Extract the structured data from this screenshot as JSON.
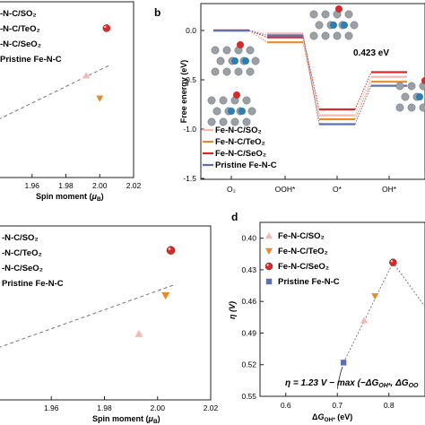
{
  "figure": {
    "panel_b_letter": "b",
    "panel_d_letter": "d",
    "annotation_b": "0.423 eV",
    "equation_d": "η = 1.23 V − max (−ΔG",
    "equation_d_sub": "OH*",
    "equation_d_tail": ", ΔG",
    "equation_d_sub2": "OO",
    "series_labels": {
      "so2": "Fe-N-C/SO₂",
      "teo2": "Fe-N-C/TeO₂",
      "seo2": "Fe-N-C/SeO₂",
      "pristine": "Pristine Fe-N-C"
    },
    "legend_a_labels": [
      "-N-C/SO₂",
      "-N-C/TeO₂",
      "-N-C/SeO₂",
      "Pristine Fe-N-C"
    ],
    "legend_c_labels": [
      "-N-C/SO₂",
      "-N-C/TeO₂",
      "-N-C/SeO₂",
      "Pristine Fe-N-C"
    ],
    "colors": {
      "so2": "#f4b8b0",
      "teo2": "#e88a2a",
      "seo2": "#d62a2a",
      "pristine": "#5b6fb5",
      "dash": "#777777"
    }
  },
  "chart_data": [
    {
      "panel": "a",
      "type": "scatter",
      "xlabel": "Spin moment (μB)",
      "xlim": [
        1.94,
        2.02
      ],
      "xticks": [
        1.96,
        1.98,
        2.0,
        2.02
      ],
      "xtick_labels": [
        "1.96",
        "1.98",
        "2.00",
        "2.02"
      ],
      "points": [
        {
          "series": "so2",
          "x": 1.992,
          "y": 0.58
        },
        {
          "series": "teo2",
          "x": 2.0,
          "y": 0.45
        },
        {
          "series": "seo2",
          "x": 2.004,
          "y": 0.85
        }
      ],
      "fit_line": [
        [
          1.94,
          0.33
        ],
        [
          2.006,
          0.64
        ]
      ]
    },
    {
      "panel": "b",
      "type": "line",
      "ylabel": "Free energy (eV)",
      "categories": [
        "O₂",
        "OOH*",
        "O*",
        "OH*"
      ],
      "ylim": [
        -1.5,
        0.25
      ],
      "yticks": [
        0.0,
        -0.5,
        -1.0,
        -1.5
      ],
      "ytick_labels": [
        "0.0",
        "-0.5",
        "-1.0",
        "-1.5"
      ],
      "series": [
        {
          "name": "so2",
          "values": [
            0.0,
            -0.03,
            -0.86,
            -0.47
          ]
        },
        {
          "name": "teo2",
          "values": [
            0.0,
            -0.12,
            -0.9,
            -0.52
          ]
        },
        {
          "name": "seo2",
          "values": [
            0.0,
            -0.07,
            -0.8,
            -0.423
          ]
        },
        {
          "name": "pristine",
          "values": [
            0.0,
            -0.05,
            -0.95,
            -0.56
          ]
        }
      ]
    },
    {
      "panel": "c",
      "type": "scatter",
      "xlabel": "Spin moment (μB)",
      "xlim": [
        1.94,
        2.02
      ],
      "xticks": [
        1.96,
        1.98,
        2.0,
        2.02
      ],
      "xtick_labels": [
        "1.96",
        "1.98",
        "2.00",
        "2.02"
      ],
      "points": [
        {
          "series": "so2",
          "x": 1.993,
          "y": 0.38
        },
        {
          "series": "teo2",
          "x": 2.003,
          "y": 0.6
        },
        {
          "series": "seo2",
          "x": 2.005,
          "y": 0.86
        }
      ],
      "fit_line": [
        [
          1.94,
          0.3
        ],
        [
          2.006,
          0.66
        ]
      ]
    },
    {
      "panel": "d",
      "type": "scatter",
      "xlabel": "ΔGOH* (eV)",
      "ylabel": "η (V)",
      "xlim": [
        0.55,
        0.87
      ],
      "ylim": [
        0.55,
        0.385
      ],
      "xticks": [
        0.6,
        0.7,
        0.8
      ],
      "xtick_labels": [
        "0.6",
        "0.7",
        "0.8"
      ],
      "yticks": [
        0.4,
        0.43,
        0.46,
        0.49,
        0.52,
        0.55
      ],
      "ytick_labels": [
        "0.40",
        "0.43",
        "0.46",
        "0.49",
        "0.52",
        "0.55"
      ],
      "points": [
        {
          "series": "pristine",
          "x": 0.712,
          "y": 0.518
        },
        {
          "series": "so2",
          "x": 0.752,
          "y": 0.478
        },
        {
          "series": "teo2",
          "x": 0.773,
          "y": 0.455
        },
        {
          "series": "seo2",
          "x": 0.808,
          "y": 0.423
        }
      ],
      "volcano": [
        [
          0.712,
          0.518
        ],
        [
          0.808,
          0.423
        ],
        [
          0.87,
          0.465
        ]
      ]
    }
  ]
}
